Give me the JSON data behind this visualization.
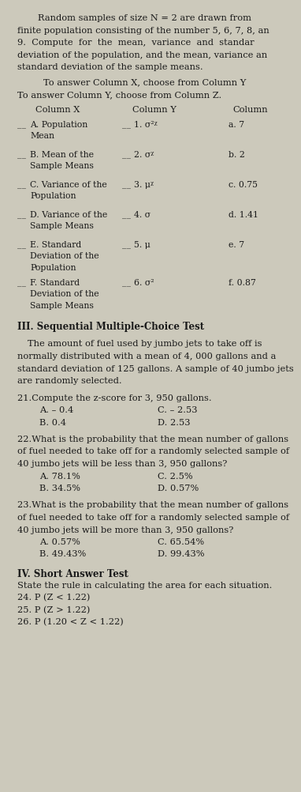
{
  "bg_color": "#ccc9bb",
  "text_color": "#1a1a1a",
  "intro_lines": [
    "Random samples of size N = 2 are drawn from",
    "finite population consisting of the number 5, 6, 7, 8, an",
    "9.  Compute  for  the  mean,  variance  and  standar",
    "deviation of the population, and the mean, variance an",
    "standard deviation of the sample means."
  ],
  "instruction1": "To answer Column X, choose from Column Y",
  "instruction2": "To answer Column Y, choose from Column Z.",
  "col_headers": [
    "Column X",
    "Column Y",
    "Column"
  ],
  "col_x": [
    [
      "A. Population",
      "Mean"
    ],
    [
      "B. Mean of the",
      "Sample Means"
    ],
    [
      "C. Variance of the",
      "Population"
    ],
    [
      "D. Variance of the",
      "Sample Means"
    ],
    [
      "E. Standard",
      "Deviation of the",
      "Population"
    ],
    [
      "F. Standard",
      "Deviation of the",
      "Sample Means"
    ]
  ],
  "col_y": [
    "1. σ²ᵡ",
    "2. σᵡ",
    "3. μᵡ",
    "4. σ",
    "5. μ",
    "6. σ²"
  ],
  "col_z": [
    "a. 7",
    "b. 2",
    "c. 0.75",
    "d. 1.41",
    "e. 7",
    "f. 0.87"
  ],
  "section3_title": "III. Sequential Multiple-Choice Test",
  "section3_intro": [
    "The amount of fuel used by jumbo jets to take off is",
    "normally distributed with a mean of 4, 000 gallons and a",
    "standard deviation of 125 gallons. A sample of 40 jumbo jets",
    "are randomly selected."
  ],
  "q21_stem": "21.Compute the z-score for 3, 950 gallons.",
  "q21_choices": [
    "A. – 0.4",
    "C. – 2.53",
    "B. 0.4",
    "D. 2.53"
  ],
  "q22_stem": [
    "22.What is the probability that the mean number of gallons",
    "of fuel needed to take off for a randomly selected sample of",
    "40 jumbo jets will be less than 3, 950 gallons?"
  ],
  "q22_choices": [
    "A. 78.1%",
    "C. 2.5%",
    "B. 34.5%",
    "D. 0.57%"
  ],
  "q23_stem": [
    "23.What is the probability that the mean number of gallons",
    "of fuel needed to take off for a randomly selected sample of",
    "40 jumbo jets will be more than 3, 950 gallons?"
  ],
  "q23_choices": [
    "A. 0.57%",
    "C. 65.54%",
    "B. 49.43%",
    "D. 99.43%"
  ],
  "section4_title": "IV. Short Answer Test",
  "section4_intro": "State the rule in calculating the area for each situation.",
  "section4_items": [
    "24. P (Z < 1.22)",
    "25. P (Z > 1.22)",
    "26. P (1.20 < Z < 1.22)"
  ]
}
